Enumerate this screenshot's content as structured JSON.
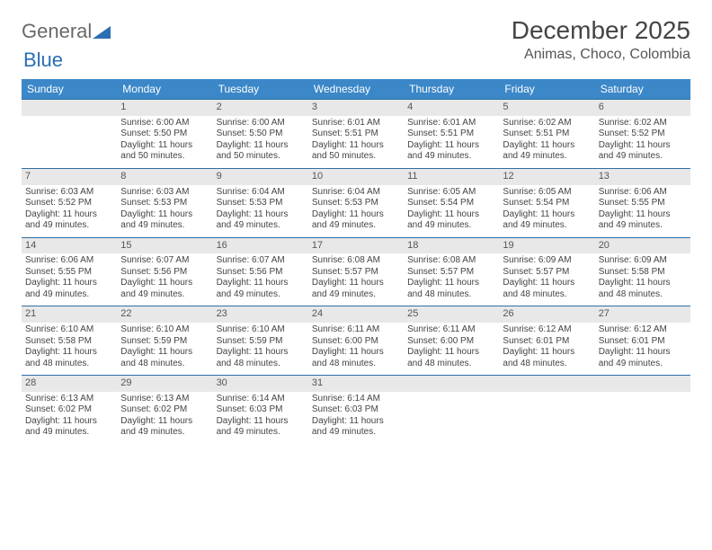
{
  "brand": {
    "part1": "General",
    "part2": "Blue",
    "logo_color": "#2b6fb3"
  },
  "title": "December 2025",
  "location": "Animas, Choco, Colombia",
  "colors": {
    "header_bg": "#3b87c8",
    "header_fg": "#ffffff",
    "daynum_bg": "#e8e8e8",
    "rule": "#2f6fa8",
    "text": "#444444",
    "page_bg": "#ffffff"
  },
  "weekdays": [
    "Sunday",
    "Monday",
    "Tuesday",
    "Wednesday",
    "Thursday",
    "Friday",
    "Saturday"
  ],
  "weeks": [
    [
      null,
      {
        "n": "1",
        "sr": "6:00 AM",
        "ss": "5:50 PM",
        "dl": "11 hours and 50 minutes."
      },
      {
        "n": "2",
        "sr": "6:00 AM",
        "ss": "5:50 PM",
        "dl": "11 hours and 50 minutes."
      },
      {
        "n": "3",
        "sr": "6:01 AM",
        "ss": "5:51 PM",
        "dl": "11 hours and 50 minutes."
      },
      {
        "n": "4",
        "sr": "6:01 AM",
        "ss": "5:51 PM",
        "dl": "11 hours and 49 minutes."
      },
      {
        "n": "5",
        "sr": "6:02 AM",
        "ss": "5:51 PM",
        "dl": "11 hours and 49 minutes."
      },
      {
        "n": "6",
        "sr": "6:02 AM",
        "ss": "5:52 PM",
        "dl": "11 hours and 49 minutes."
      }
    ],
    [
      {
        "n": "7",
        "sr": "6:03 AM",
        "ss": "5:52 PM",
        "dl": "11 hours and 49 minutes."
      },
      {
        "n": "8",
        "sr": "6:03 AM",
        "ss": "5:53 PM",
        "dl": "11 hours and 49 minutes."
      },
      {
        "n": "9",
        "sr": "6:04 AM",
        "ss": "5:53 PM",
        "dl": "11 hours and 49 minutes."
      },
      {
        "n": "10",
        "sr": "6:04 AM",
        "ss": "5:53 PM",
        "dl": "11 hours and 49 minutes."
      },
      {
        "n": "11",
        "sr": "6:05 AM",
        "ss": "5:54 PM",
        "dl": "11 hours and 49 minutes."
      },
      {
        "n": "12",
        "sr": "6:05 AM",
        "ss": "5:54 PM",
        "dl": "11 hours and 49 minutes."
      },
      {
        "n": "13",
        "sr": "6:06 AM",
        "ss": "5:55 PM",
        "dl": "11 hours and 49 minutes."
      }
    ],
    [
      {
        "n": "14",
        "sr": "6:06 AM",
        "ss": "5:55 PM",
        "dl": "11 hours and 49 minutes."
      },
      {
        "n": "15",
        "sr": "6:07 AM",
        "ss": "5:56 PM",
        "dl": "11 hours and 49 minutes."
      },
      {
        "n": "16",
        "sr": "6:07 AM",
        "ss": "5:56 PM",
        "dl": "11 hours and 49 minutes."
      },
      {
        "n": "17",
        "sr": "6:08 AM",
        "ss": "5:57 PM",
        "dl": "11 hours and 49 minutes."
      },
      {
        "n": "18",
        "sr": "6:08 AM",
        "ss": "5:57 PM",
        "dl": "11 hours and 48 minutes."
      },
      {
        "n": "19",
        "sr": "6:09 AM",
        "ss": "5:57 PM",
        "dl": "11 hours and 48 minutes."
      },
      {
        "n": "20",
        "sr": "6:09 AM",
        "ss": "5:58 PM",
        "dl": "11 hours and 48 minutes."
      }
    ],
    [
      {
        "n": "21",
        "sr": "6:10 AM",
        "ss": "5:58 PM",
        "dl": "11 hours and 48 minutes."
      },
      {
        "n": "22",
        "sr": "6:10 AM",
        "ss": "5:59 PM",
        "dl": "11 hours and 48 minutes."
      },
      {
        "n": "23",
        "sr": "6:10 AM",
        "ss": "5:59 PM",
        "dl": "11 hours and 48 minutes."
      },
      {
        "n": "24",
        "sr": "6:11 AM",
        "ss": "6:00 PM",
        "dl": "11 hours and 48 minutes."
      },
      {
        "n": "25",
        "sr": "6:11 AM",
        "ss": "6:00 PM",
        "dl": "11 hours and 48 minutes."
      },
      {
        "n": "26",
        "sr": "6:12 AM",
        "ss": "6:01 PM",
        "dl": "11 hours and 48 minutes."
      },
      {
        "n": "27",
        "sr": "6:12 AM",
        "ss": "6:01 PM",
        "dl": "11 hours and 49 minutes."
      }
    ],
    [
      {
        "n": "28",
        "sr": "6:13 AM",
        "ss": "6:02 PM",
        "dl": "11 hours and 49 minutes."
      },
      {
        "n": "29",
        "sr": "6:13 AM",
        "ss": "6:02 PM",
        "dl": "11 hours and 49 minutes."
      },
      {
        "n": "30",
        "sr": "6:14 AM",
        "ss": "6:03 PM",
        "dl": "11 hours and 49 minutes."
      },
      {
        "n": "31",
        "sr": "6:14 AM",
        "ss": "6:03 PM",
        "dl": "11 hours and 49 minutes."
      },
      null,
      null,
      null
    ]
  ],
  "labels": {
    "sunrise": "Sunrise:",
    "sunset": "Sunset:",
    "daylight": "Daylight:"
  }
}
